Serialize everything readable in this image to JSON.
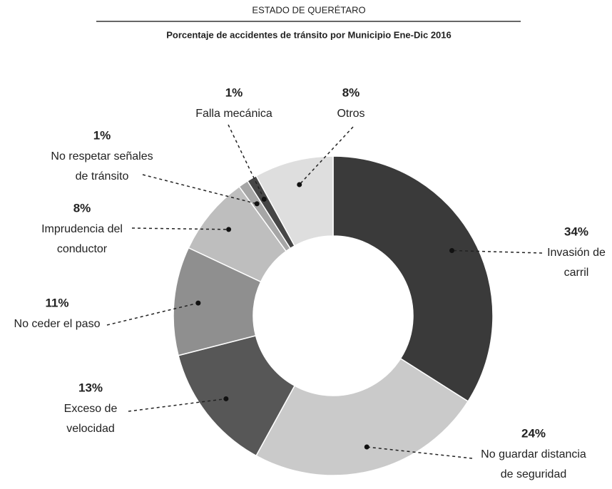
{
  "chart_data": {
    "type": "donut",
    "title": "ESTADO DE QUERÉTARO",
    "subtitle": "Porcentaje de accidentes de tránsito por Municipio Ene-Dic 2016",
    "categories": [
      [
        "Invasión de",
        "carril"
      ],
      [
        "No guardar distancia",
        "de seguridad"
      ],
      [
        "Exceso de",
        "velocidad"
      ],
      [
        "No ceder el paso"
      ],
      [
        "Imprudencia del",
        "conductor"
      ],
      [
        "No respetar señales",
        "de tránsito"
      ],
      [
        "Falla mecánica"
      ],
      [
        "Otros"
      ]
    ],
    "values": [
      34,
      24,
      13,
      11,
      8,
      1,
      1,
      8
    ],
    "value_labels": [
      "34%",
      "24%",
      "13%",
      "11%",
      "8%",
      "1%",
      "1%",
      "8%"
    ],
    "colors": [
      "#3a3a3a",
      "#cacaca",
      "#575757",
      "#8f8f8f",
      "#bebebe",
      "#a6a6a6",
      "#464646",
      "#dedede"
    ]
  }
}
